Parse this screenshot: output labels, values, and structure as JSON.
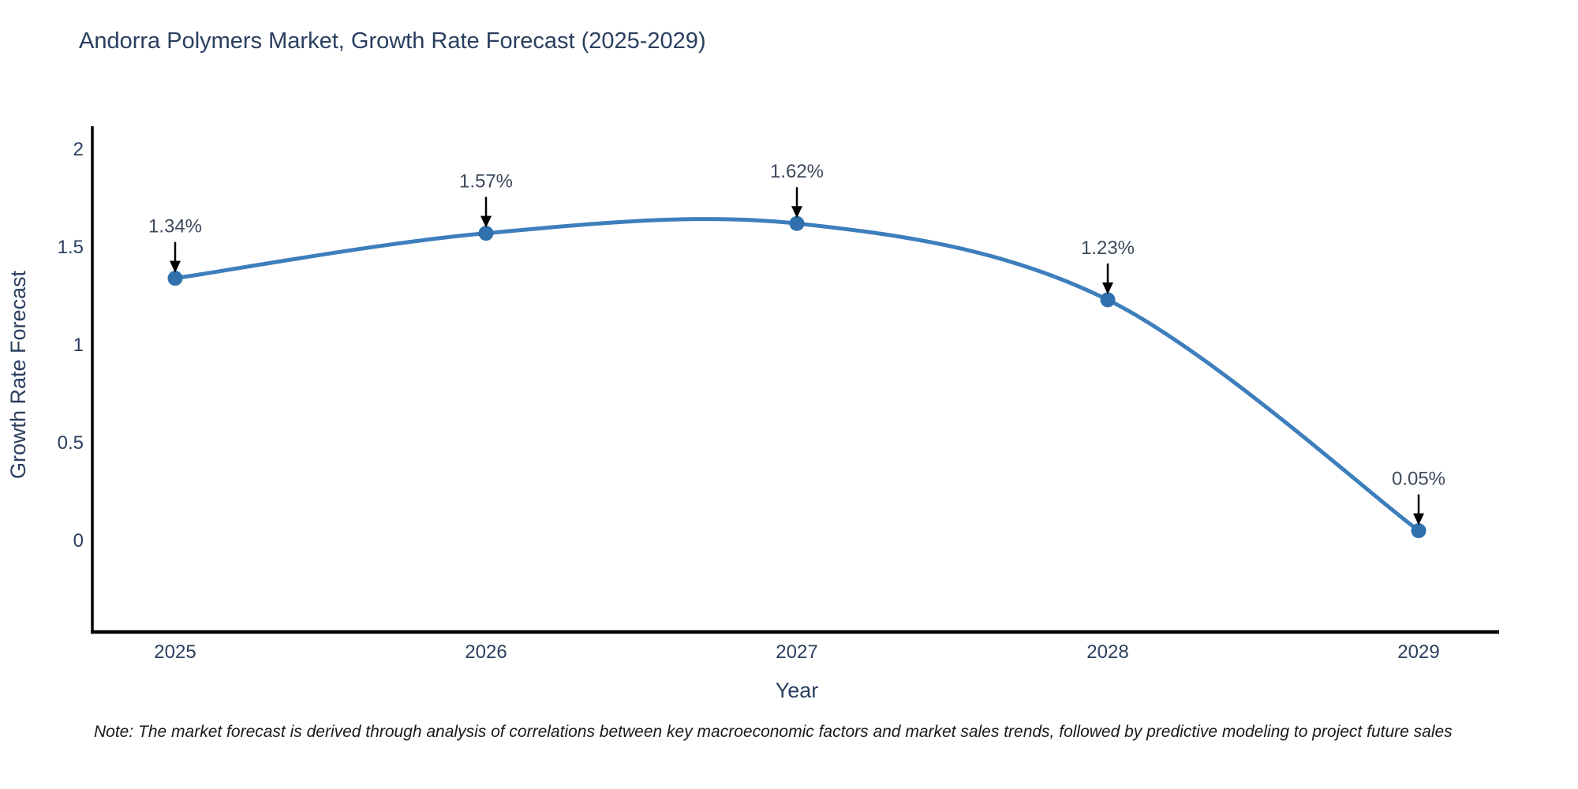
{
  "title": "Andorra Polymers Market, Growth Rate Forecast (2025-2029)",
  "note": {
    "text": "Note: The market forecast is derived through analysis of correlations between key macroeconomic factors and market sales trends, followed by predictive modeling to project future sales"
  },
  "chart_data": {
    "type": "line",
    "title": "Andorra Polymers Market, Growth Rate Forecast (2025-2029)",
    "x": [
      "2025",
      "2026",
      "2027",
      "2028",
      "2029"
    ],
    "series": [
      {
        "name": "Growth Rate Forecast",
        "values": [
          1.34,
          1.57,
          1.62,
          1.23,
          0.05
        ]
      }
    ],
    "point_labels": [
      "1.34%",
      "1.57%",
      "1.62%",
      "1.23%",
      "0.05%"
    ],
    "xlabel": "Year",
    "ylabel": "Growth Rate Forecast",
    "ylim": [
      -0.46,
      2.12
    ],
    "yticks": [
      "2",
      "1.5",
      "1",
      "0.5",
      "0"
    ],
    "ytick_values": [
      2,
      1.5,
      1,
      0.5,
      0
    ],
    "grid": false,
    "legend": "none",
    "line_shape": "spline",
    "colors": {
      "line": "#3d7ebc",
      "marker": "#3070ad",
      "axis": "#000000",
      "text": "#2a3f5f",
      "annotation_text": "#3d4a5c",
      "arrow": "#000000",
      "background": "#ffffff"
    }
  }
}
